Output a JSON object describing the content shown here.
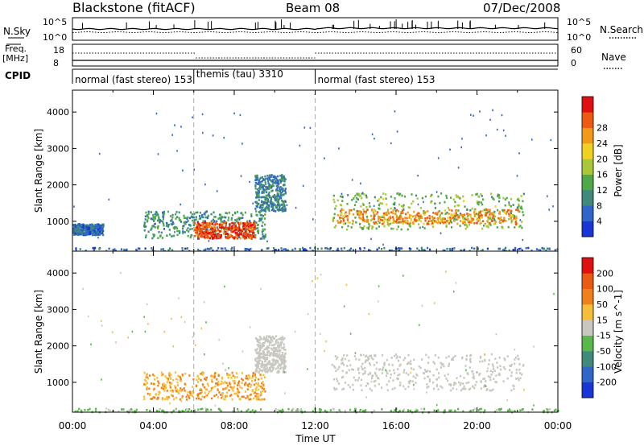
{
  "header": {
    "station": "Blackstone (fitACF)",
    "beam": "Beam 08",
    "date": "07/Dec/2008"
  },
  "panel_labels": {
    "nsky": "N.Sky",
    "freq_line1": "Freq.",
    "freq_line2": "[MHz]",
    "cpid": "CPID",
    "nsearch": "N.Search",
    "nave": "Nave"
  },
  "nsky_ticks": {
    "top": "10^5",
    "bottom": "10^0"
  },
  "nsearch_ticks": {
    "top": "10^5",
    "bottom": "10^0"
  },
  "freq_ticks": {
    "top": "18",
    "bottom": "8"
  },
  "nave_ticks": {
    "top": "60",
    "bottom": "0"
  },
  "cpid_segments": [
    {
      "label": "normal (fast stereo) 153",
      "start": 0
    },
    {
      "label": "themis (tau) 3310",
      "start": 6
    },
    {
      "label": "normal (fast stereo) 153",
      "start": 12
    }
  ],
  "chart_data": [
    {
      "type": "heatmap",
      "title": "Power",
      "xlabel": "",
      "ylabel": "Slant Range [km]",
      "xlim": [
        0,
        24
      ],
      "ylim": [
        180,
        4600
      ],
      "yticks": [
        "1000",
        "2000",
        "3000",
        "4000"
      ],
      "colorbar": {
        "label": "Power [dB]",
        "range": [
          0,
          32
        ],
        "ticks": [
          "4",
          "8",
          "12",
          "16",
          "20",
          "24",
          "28"
        ],
        "colors": [
          "#1a35d6",
          "#2f66c8",
          "#3f8a7a",
          "#4fa84a",
          "#a8c83a",
          "#f0d020",
          "#f29a18",
          "#ee5a12",
          "#e01010"
        ]
      },
      "regions": [
        {
          "name": "near-range band",
          "t": [
            0,
            24
          ],
          "range": [
            200,
            300
          ],
          "value": 6
        },
        {
          "name": "early echoes",
          "t": [
            0,
            1.5
          ],
          "range": [
            650,
            950
          ],
          "value": 6
        },
        {
          "name": "evening echoes",
          "t": [
            3.5,
            9.5
          ],
          "range": [
            550,
            1300
          ],
          "value": 10
        },
        {
          "name": "strong core",
          "t": [
            6,
            9
          ],
          "range": [
            550,
            1000
          ],
          "value": 28
        },
        {
          "name": "far tail",
          "t": [
            9,
            10.5
          ],
          "range": [
            1300,
            2300
          ],
          "value": 8
        },
        {
          "name": "night band",
          "t": [
            12.8,
            22.3
          ],
          "range": [
            800,
            1800
          ],
          "value": 14
        },
        {
          "name": "night core",
          "t": [
            13,
            22
          ],
          "range": [
            950,
            1350
          ],
          "value": 24
        }
      ]
    },
    {
      "type": "heatmap",
      "title": "Velocity",
      "xlabel": "Time UT",
      "ylabel": "Slant Range [km]",
      "xlim": [
        0,
        24
      ],
      "ylim": [
        180,
        4600
      ],
      "yticks": [
        "1000",
        "2000",
        "3000",
        "4000"
      ],
      "xticks": [
        "00:00",
        "04:00",
        "08:00",
        "12:00",
        "16:00",
        "20:00",
        "00:00"
      ],
      "colorbar": {
        "label": "Velocity [m s^-1]",
        "range": [
          -250,
          250
        ],
        "ticks": [
          "200",
          "100",
          "50",
          "15",
          "-15",
          "-50",
          "-100",
          "-200"
        ],
        "colors": [
          "#1a35d6",
          "#2f66c8",
          "#3f8a7a",
          "#58b84a",
          "#c8c8c0",
          "#f7be3a",
          "#f0801a",
          "#ea5a12",
          "#e01010"
        ]
      },
      "regions": [
        {
          "name": "near-range band",
          "t": [
            0,
            24
          ],
          "range": [
            200,
            300
          ],
          "value": 40
        },
        {
          "name": "evening echoes",
          "t": [
            3.5,
            9.5
          ],
          "range": [
            550,
            1300
          ],
          "value": -80
        },
        {
          "name": "far tail",
          "t": [
            9,
            10.5
          ],
          "range": [
            1300,
            2300
          ],
          "value": 0
        },
        {
          "name": "night band",
          "t": [
            12.8,
            22.3
          ],
          "range": [
            800,
            1800
          ],
          "value": 0
        }
      ]
    }
  ],
  "time_axis_label": "Time UT"
}
